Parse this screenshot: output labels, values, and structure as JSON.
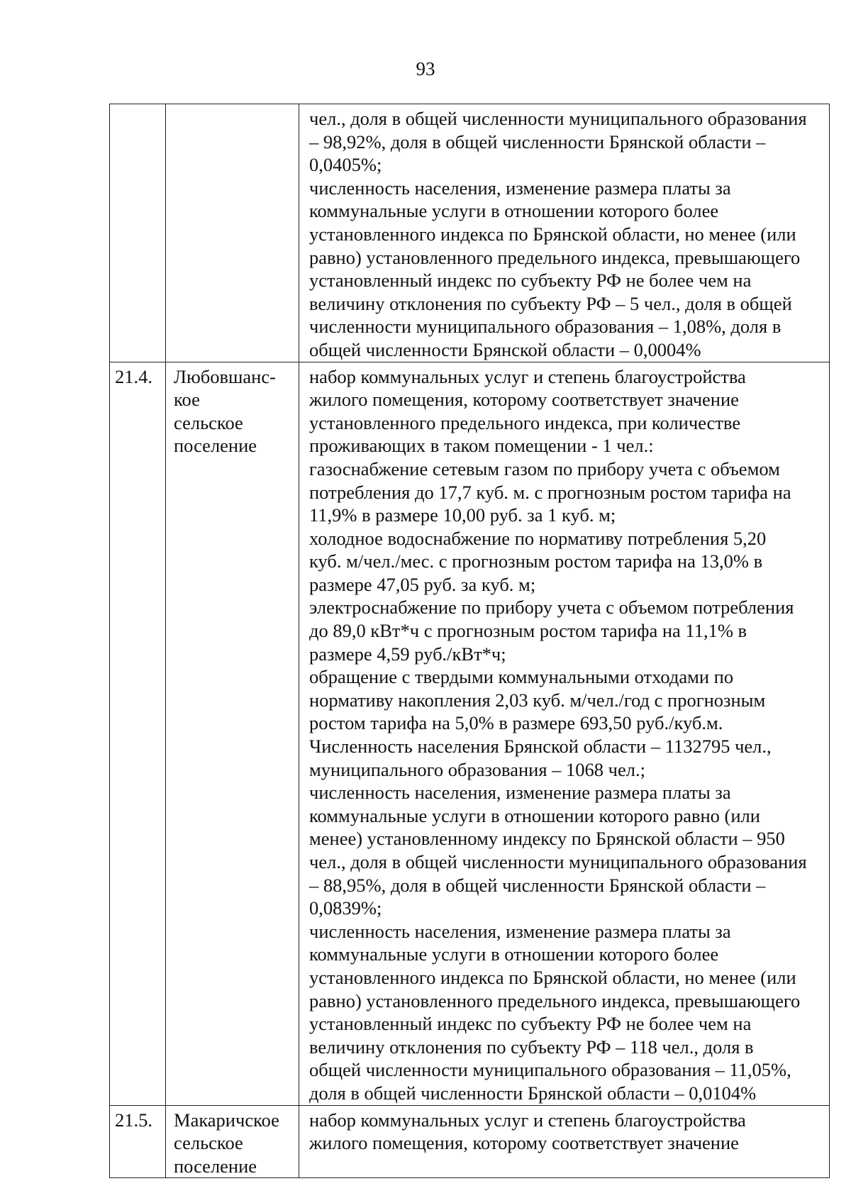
{
  "page_number": "93",
  "rows": [
    {
      "num": "",
      "name": [],
      "lines": [
        "чел., доля в общей численности муниципального образования",
        "– 98,92%, доля в общей численности Брянской области –",
        "0,0405%;",
        "численность населения, изменение размера платы за",
        "коммунальные услуги в отношении которого более",
        "установленного индекса по Брянской области, но менее (или",
        "равно) установленного предельного индекса, превышающего",
        "установленный индекс по субъекту РФ не более чем на",
        "величину отклонения по субъекту РФ – 5 чел., доля в общей",
        "численности муниципального образования – 1,08%, доля в",
        "общей численности Брянской области – 0,0004%"
      ]
    },
    {
      "num": "21.4.",
      "name": [
        "Любовшанс-",
        "кое",
        "сельское",
        "поселение"
      ],
      "lines": [
        "набор коммунальных услуг и степень благоустройства",
        "жилого помещения, которому соответствует значение",
        "установленного предельного индекса, при количестве",
        "проживающих в таком помещении - 1 чел.:",
        "газоснабжение сетевым газом по прибору учета с объемом",
        "потребления до 17,7 куб. м. с прогнозным ростом тарифа на",
        "11,9% в размере 10,00 руб. за 1 куб. м;",
        "холодное водоснабжение по нормативу потребления 5,20",
        "куб. м/чел./мес. с прогнозным ростом тарифа на 13,0% в",
        "размере 47,05 руб. за куб. м;",
        "электроснабжение по прибору учета с объемом потребления",
        "до 89,0 кВт*ч с прогнозным ростом тарифа на 11,1% в",
        "размере 4,59 руб./кВт*ч;",
        "обращение с твердыми коммунальными отходами по",
        "нормативу накопления 2,03 куб. м/чел./год с прогнозным",
        "ростом тарифа на 5,0% в размере 693,50 руб./куб.м.",
        "Численность населения Брянской области – 1132795 чел.,",
        "муниципального образования – 1068 чел.;",
        "численность населения, изменение размера платы за",
        "коммунальные услуги в отношении которого равно (или",
        "менее) установленному индексу по Брянской области – 950",
        "чел., доля в общей численности муниципального образования",
        "– 88,95%, доля в общей численности Брянской области –",
        "0,0839%;",
        "численность населения, изменение размера платы за",
        "коммунальные услуги в отношении которого более",
        "установленного индекса по Брянской области, но менее (или",
        "равно) установленного предельного индекса, превышающего",
        "установленный индекс по субъекту РФ не более чем на",
        "величину отклонения по субъекту РФ – 118 чел., доля в",
        "общей численности муниципального образования – 11,05%,",
        "доля в общей численности Брянской области – 0,0104%"
      ]
    },
    {
      "num": "21.5.",
      "name": [
        "Макаричское",
        "сельское",
        "поселение"
      ],
      "lines": [
        "набор коммунальных услуг и степень благоустройства",
        "жилого помещения, которому соответствует значение"
      ]
    }
  ]
}
